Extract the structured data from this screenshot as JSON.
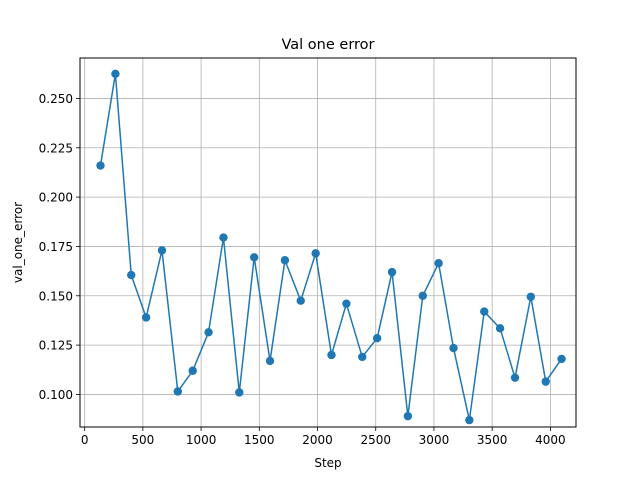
{
  "chart_data": {
    "type": "line",
    "title": "Val one error",
    "xlabel": "Step",
    "ylabel": "val_one_error",
    "xlim": [
      -40,
      4220
    ],
    "ylim": [
      0.0835,
      0.2705
    ],
    "x_ticks": [
      0,
      500,
      1000,
      1500,
      2000,
      2500,
      3000,
      3500,
      4000
    ],
    "y_ticks": [
      0.1,
      0.125,
      0.15,
      0.175,
      0.2,
      0.225,
      0.25
    ],
    "y_tick_labels": [
      "0.100",
      "0.125",
      "0.150",
      "0.175",
      "0.200",
      "0.225",
      "0.250"
    ],
    "grid": true,
    "marker": "circle",
    "color": "#1f77b4",
    "series": [
      {
        "x": [
          136,
          264,
          400,
          528,
          664,
          800,
          928,
          1064,
          1192,
          1328,
          1456,
          1592,
          1720,
          1856,
          1984,
          2120,
          2248,
          2384,
          2512,
          2640,
          2776,
          2904,
          3040,
          3168,
          3304,
          3432,
          3568,
          3696,
          3832,
          3960,
          4096
        ],
        "values": [
          0.216,
          0.2625,
          0.1605,
          0.139,
          0.173,
          0.1015,
          0.112,
          0.1315,
          0.1795,
          0.101,
          0.1695,
          0.117,
          0.168,
          0.1475,
          0.1715,
          0.12,
          0.146,
          0.119,
          0.1285,
          0.162,
          0.089,
          0.15,
          0.1665,
          0.1235,
          0.087,
          0.142,
          0.1335,
          0.1085,
          0.1495,
          0.1065,
          0.118
        ]
      }
    ]
  }
}
